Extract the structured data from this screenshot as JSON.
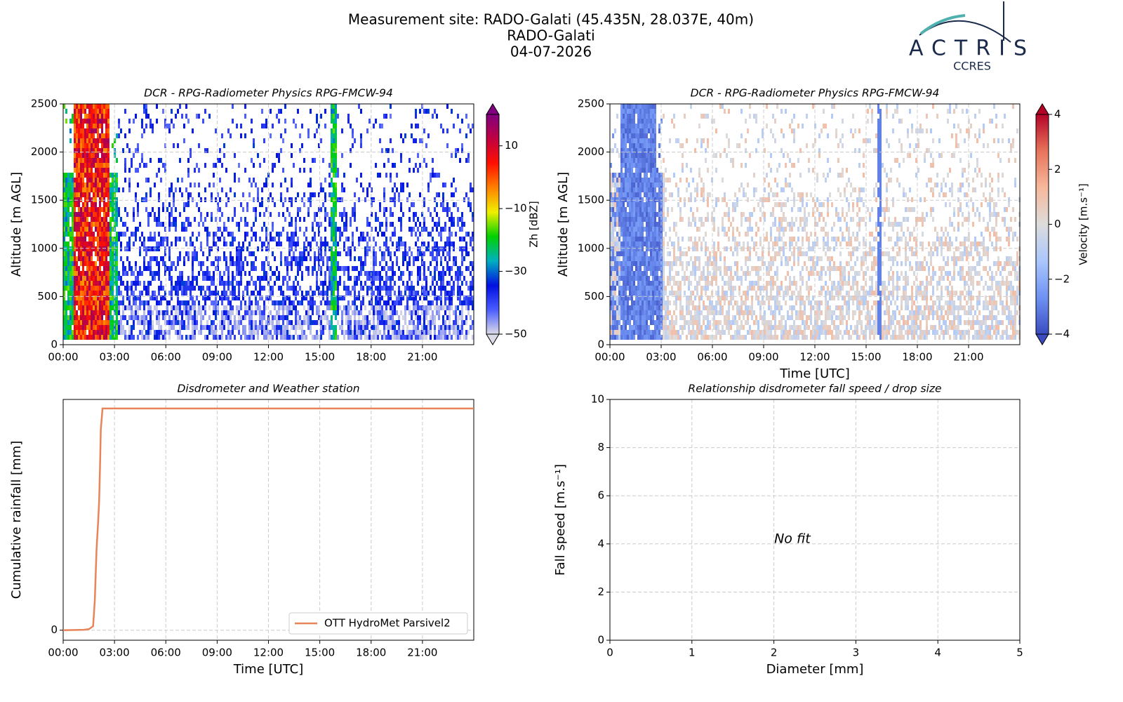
{
  "header": {
    "title_lines": [
      "Measurement site: RADO-Galati (45.435N, 28.037E, 40m)",
      "RADO-Galati",
      "04-07-2026"
    ],
    "logo": {
      "name": "ACTRIS",
      "subtitle": "CCRES"
    }
  },
  "chart_data": [
    {
      "type": "heatmap",
      "title": "DCR - RPG-Radiometer Physics RPG-FMCW-94",
      "ylabel": "Altitude [m AGL]",
      "xlim": [
        0,
        24
      ],
      "xticks": [
        {
          "value": 0,
          "label": "00:00"
        },
        {
          "value": 3,
          "label": "03:00"
        },
        {
          "value": 6,
          "label": "06:00"
        },
        {
          "value": 9,
          "label": "09:00"
        },
        {
          "value": 12,
          "label": "12:00"
        },
        {
          "value": 15,
          "label": "15:00"
        },
        {
          "value": 18,
          "label": "18:00"
        },
        {
          "value": 21,
          "label": "21:00"
        }
      ],
      "ylim": [
        0,
        2500
      ],
      "yticks": [
        0,
        500,
        1000,
        1500,
        2000,
        2500
      ],
      "grid": true,
      "colorbar": {
        "label": "Zh [dBZ]",
        "lim": [
          -50,
          20
        ],
        "ticks": [
          10,
          {
            "value": -10,
            "label": "−10"
          },
          {
            "value": -30,
            "label": "−30"
          },
          {
            "value": -50,
            "label": "−50"
          }
        ],
        "colors": [
          "#dcdce6",
          "#4a5cff",
          "#0010e0",
          "#00b0c0",
          "#00d000",
          "#f0f000",
          "#ff8000",
          "#ff1000",
          "#c00040",
          "#800080"
        ]
      }
    },
    {
      "type": "heatmap",
      "title": "DCR - RPG-Radiometer Physics RPG-FMCW-94",
      "ylabel": "Altitude [m AGL]",
      "xlabel": "Time [UTC]",
      "xlim": [
        0,
        24
      ],
      "xticks": [
        {
          "value": 0,
          "label": "00:00"
        },
        {
          "value": 3,
          "label": "03:00"
        },
        {
          "value": 6,
          "label": "06:00"
        },
        {
          "value": 9,
          "label": "09:00"
        },
        {
          "value": 12,
          "label": "12:00"
        },
        {
          "value": 15,
          "label": "15:00"
        },
        {
          "value": 18,
          "label": "18:00"
        },
        {
          "value": 21,
          "label": "21:00"
        }
      ],
      "ylim": [
        0,
        2500
      ],
      "yticks": [
        0,
        500,
        1000,
        1500,
        2000,
        2500
      ],
      "grid": true,
      "colorbar": {
        "label": "Velocity [m.s⁻¹]",
        "lim": [
          -4,
          4
        ],
        "ticks": [
          4,
          2,
          0,
          {
            "value": -2,
            "label": "−2"
          },
          {
            "value": -4,
            "label": "−4"
          }
        ],
        "colors": [
          "#3a4cc0",
          "#6f92f3",
          "#aac7fd",
          "#dddcdc",
          "#f7b89c",
          "#e7745b",
          "#b40426"
        ]
      }
    },
    {
      "type": "line",
      "title": "Disdrometer and Weather station",
      "xlabel": "Time [UTC]",
      "ylabel": "Cumulative rainfall [mm]",
      "xlim": [
        0,
        24
      ],
      "xticks": [
        {
          "value": 0,
          "label": "00:00"
        },
        {
          "value": 3,
          "label": "03:00"
        },
        {
          "value": 6,
          "label": "06:00"
        },
        {
          "value": 9,
          "label": "09:00"
        },
        {
          "value": 12,
          "label": "12:00"
        },
        {
          "value": 15,
          "label": "15:00"
        },
        {
          "value": 18,
          "label": "18:00"
        },
        {
          "value": 21,
          "label": "21:00"
        }
      ],
      "ylim": [
        -0.5,
        11.5
      ],
      "yticks": [
        0
      ],
      "grid": true,
      "legend": "lower right",
      "series": [
        {
          "name": "OTT HydroMet Parsivel2",
          "color": "#e8845a",
          "x": [
            0,
            1.2,
            1.5,
            1.75,
            1.85,
            1.95,
            2.05,
            2.1,
            2.15,
            2.2,
            2.3,
            24
          ],
          "values": [
            0,
            0.02,
            0.05,
            0.2,
            1.5,
            4,
            5.5,
            6.4,
            8,
            10,
            11.05,
            11.05
          ]
        }
      ]
    },
    {
      "type": "scatter",
      "title": "Relationship disdrometer fall speed / drop size",
      "xlabel": "Diameter [mm]",
      "ylabel": "Fall speed [m.s⁻¹]",
      "xlim": [
        0,
        5
      ],
      "xticks": [
        0,
        1,
        2,
        3,
        4,
        5
      ],
      "ylim": [
        0,
        10
      ],
      "yticks": [
        0,
        2,
        4,
        6,
        8,
        10
      ],
      "grid": true,
      "annotation": "No fit"
    }
  ]
}
